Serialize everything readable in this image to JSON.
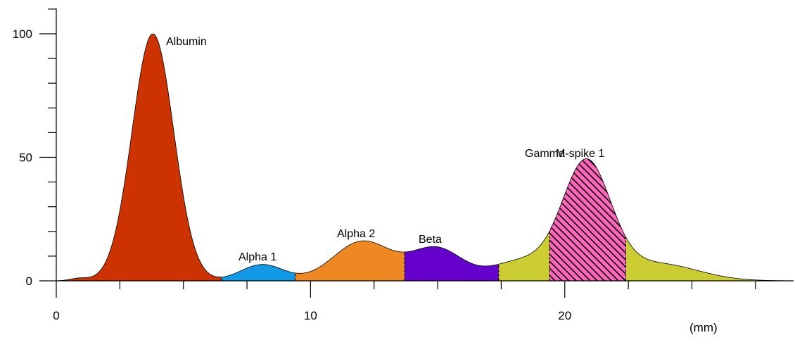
{
  "colors": {
    "albumin": "#cc3300",
    "alpha1": "#1199e6",
    "alpha2": "#ee8822",
    "beta": "#6600cc",
    "gamma": "#cccc33",
    "mspike": "#ff66bb"
  },
  "chart_data": {
    "type": "area",
    "xlabel": "(mm)",
    "ylabel": "",
    "xlim": [
      0,
      29
    ],
    "ylim": [
      0,
      110
    ],
    "x_ticks": [
      0,
      10,
      20
    ],
    "y_ticks": [
      0,
      50,
      100
    ],
    "grid": false,
    "fractions": [
      {
        "name": "Albumin",
        "x_start": 0,
        "x_end": 6.5,
        "color": "albumin",
        "peak_x": 3.8,
        "peak_y": 100
      },
      {
        "name": "Alpha 1",
        "x_start": 6.5,
        "x_end": 9.4,
        "color": "alpha1",
        "peak_x": 8.0,
        "peak_y": 7
      },
      {
        "name": "Alpha 2",
        "x_start": 9.4,
        "x_end": 13.7,
        "color": "alpha2",
        "peak_x": 12.0,
        "peak_y": 16.5
      },
      {
        "name": "Beta",
        "x_start": 13.7,
        "x_end": 17.4,
        "color": "beta",
        "peak_x": 14.9,
        "peak_y": 14
      },
      {
        "name": "Gamma",
        "x_start": 17.4,
        "x_end": 29,
        "color": "gamma",
        "peak_x": 20.8,
        "peak_y": 48.5
      },
      {
        "name": "Gamma M-spike 1",
        "x_start": 19.4,
        "x_end": 22.4,
        "color": "mspike",
        "peak_x": 20.8,
        "peak_y": 48.5,
        "hatched": true
      }
    ],
    "labels": [
      "Albumin",
      "Alpha 1",
      "Alpha 2",
      "Beta",
      "Gamma",
      "M-spike 1"
    ]
  }
}
